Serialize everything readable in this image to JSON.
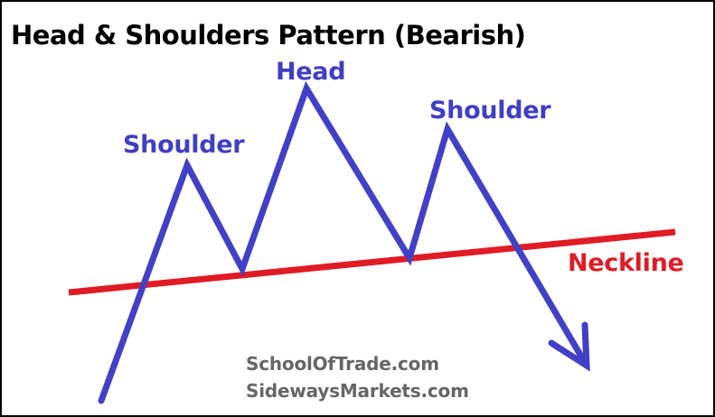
{
  "title": "Head & Shoulders Pattern (Bearish)",
  "labels": {
    "head": "Head",
    "left_shoulder": "Shoulder",
    "right_shoulder": "Shoulder",
    "neckline": "Neckline"
  },
  "watermarks": [
    "SchoolOfTrade.com",
    "SidewaysMarkets.com"
  ],
  "colors": {
    "price_line": "#4040c8",
    "neckline": "#e01b24",
    "label_text": "#3f3fc4",
    "neckline_text": "#e01b24",
    "watermark_text": "#666666",
    "title_text": "#000000"
  }
}
